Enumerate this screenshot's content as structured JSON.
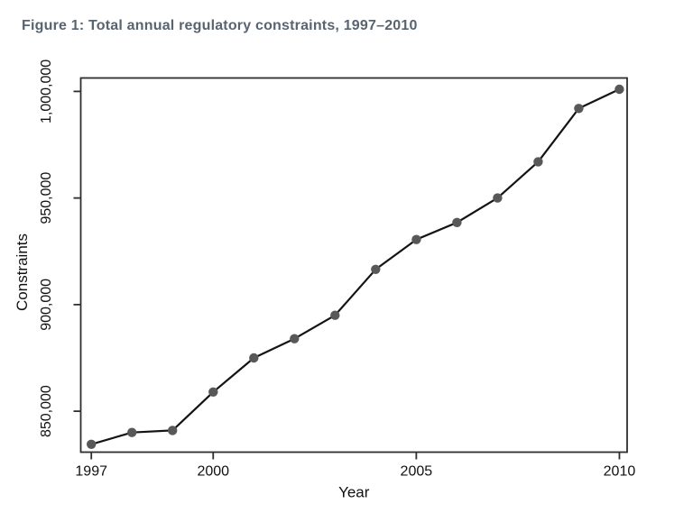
{
  "page": {
    "background": "#ffffff"
  },
  "chart_data": {
    "type": "line",
    "title": "Figure 1: Total annual regulatory constraints, 1997–2010",
    "xlabel": "Year",
    "ylabel": "Constraints",
    "x": [
      1997,
      1998,
      1999,
      2000,
      2001,
      2002,
      2003,
      2004,
      2005,
      2006,
      2007,
      2008,
      2009,
      2010
    ],
    "values": [
      834500,
      840000,
      841000,
      859000,
      875000,
      884000,
      895000,
      916500,
      930500,
      938500,
      950000,
      967000,
      992000,
      1001000
    ],
    "x_ticks": {
      "values": [
        1997,
        2000,
        2005,
        2010
      ],
      "labels": [
        "1997",
        "2000",
        "2005",
        "2010"
      ]
    },
    "y_ticks": {
      "values": [
        850000,
        900000,
        950000,
        1000000
      ],
      "labels": [
        "850,000",
        "900,000",
        "950,000",
        "1,000,000"
      ]
    },
    "xlim": [
      1996.74,
      2010.19
    ],
    "ylim": [
      830800,
      1006300
    ],
    "grid": false,
    "legend_position": "none",
    "marker": "filled-circle",
    "colors": {
      "title_text": "#586470",
      "line": "#141414",
      "marker": "#57585a",
      "axis": "#2e2e2e",
      "tick_text": "#111111"
    }
  }
}
